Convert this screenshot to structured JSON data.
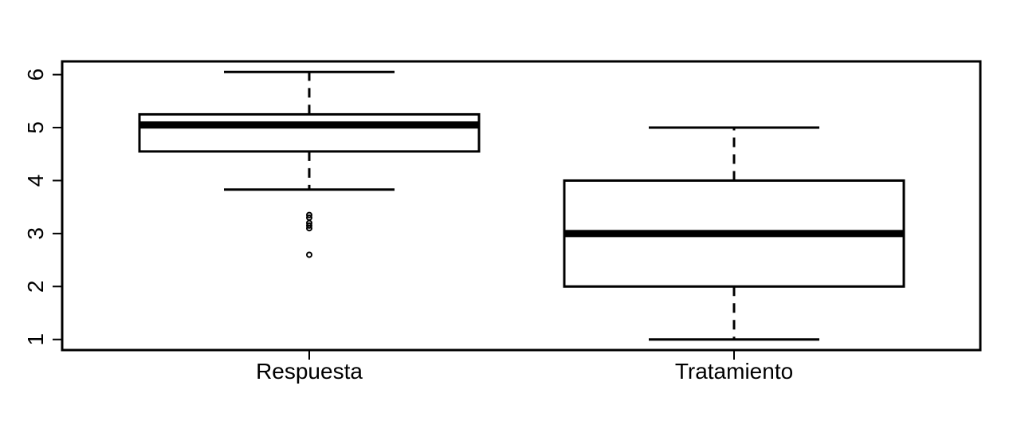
{
  "chart_data": {
    "type": "boxplot",
    "title": "",
    "xlabel": "",
    "ylabel": "",
    "ylim": [
      0.8,
      6.25
    ],
    "yticks": [
      1,
      2,
      3,
      4,
      5,
      6
    ],
    "grid": false,
    "categories": [
      "Respuesta",
      "Tratamiento"
    ],
    "boxes": [
      {
        "name": "Respuesta",
        "whisker_low": 3.83,
        "q1": 4.55,
        "median": 5.05,
        "q3": 5.25,
        "whisker_high": 6.05,
        "outliers": [
          3.35,
          3.3,
          3.2,
          3.15,
          3.1,
          2.6
        ]
      },
      {
        "name": "Tratamiento",
        "whisker_low": 1.0,
        "q1": 2.0,
        "median": 3.0,
        "q3": 4.0,
        "whisker_high": 5.0,
        "outliers": []
      }
    ]
  }
}
